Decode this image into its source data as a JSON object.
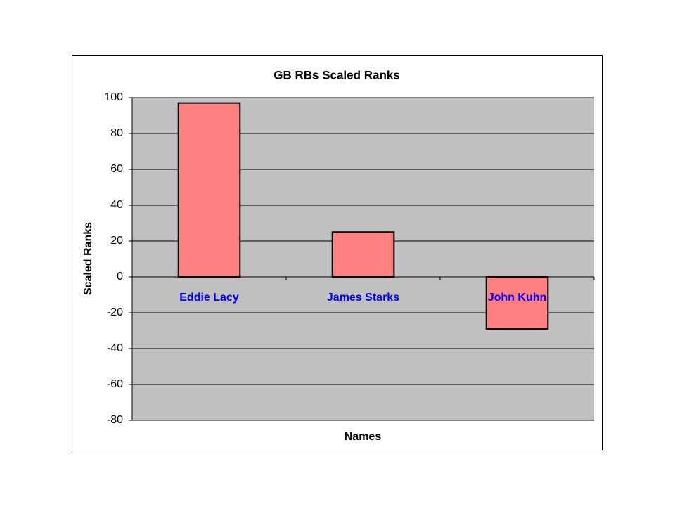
{
  "chart_data": {
    "type": "bar",
    "title": "GB RBs Scaled Ranks",
    "x_label": "Names",
    "y_label": "Scaled Ranks",
    "categories": [
      "Eddie Lacy",
      "James Starks",
      "John Kuhn"
    ],
    "values": [
      97,
      25,
      -29
    ],
    "color": "#ff8080",
    "category_label_color": "#0000ff",
    "plot_background": "#c0c0c0",
    "ylim": [
      -80,
      100
    ],
    "yticks": [
      -80,
      -60,
      -40,
      -20,
      0,
      20,
      40,
      60,
      80,
      100
    ],
    "grid": true
  }
}
